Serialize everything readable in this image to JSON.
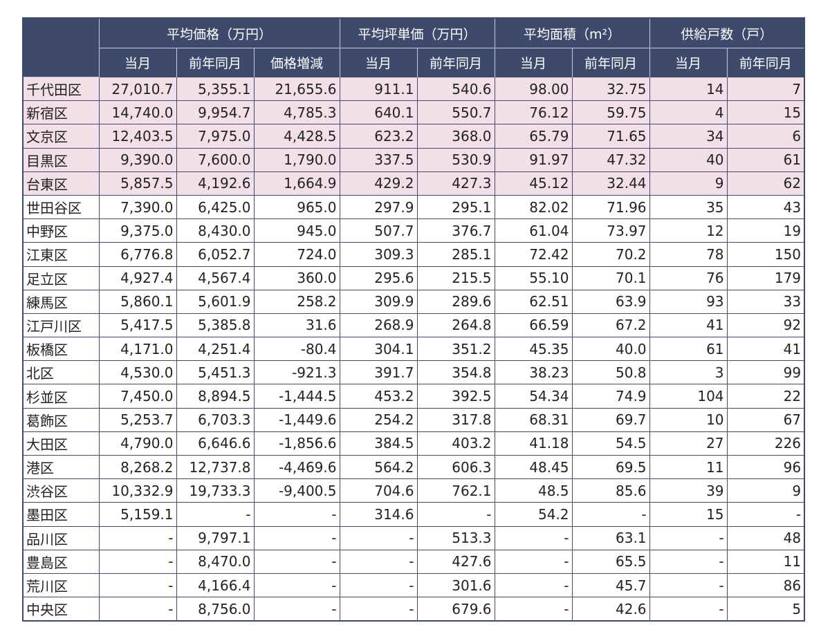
{
  "table": {
    "groups": [
      {
        "label": "平均価格（万円）",
        "span": 3
      },
      {
        "label": "平均坪単価（万円）",
        "span": 2
      },
      {
        "label": "平均面積（m²）",
        "span": 2
      },
      {
        "label": "供給戸数（戸）",
        "span": 2
      }
    ],
    "subheaders": [
      "当月",
      "前年同月",
      "価格増減",
      "当月",
      "前年同月",
      "当月",
      "前年同月",
      "当月",
      "前年同月"
    ],
    "rows": [
      [
        "千代田区",
        "27,010.7",
        "5,355.1",
        "21,655.6",
        "911.1",
        "540.6",
        "98.00",
        "32.75",
        "14",
        "7"
      ],
      [
        "新宿区",
        "14,740.0",
        "9,954.7",
        "4,785.3",
        "640.1",
        "550.7",
        "76.12",
        "59.75",
        "4",
        "15"
      ],
      [
        "文京区",
        "12,403.5",
        "7,975.0",
        "4,428.5",
        "623.2",
        "368.0",
        "65.79",
        "71.65",
        "34",
        "6"
      ],
      [
        "目黒区",
        "9,390.0",
        "7,600.0",
        "1,790.0",
        "337.5",
        "530.9",
        "91.97",
        "47.32",
        "40",
        "61"
      ],
      [
        "台東区",
        "5,857.5",
        "4,192.6",
        "1,664.9",
        "429.2",
        "427.3",
        "45.12",
        "32.44",
        "9",
        "62"
      ],
      [
        "世田谷区",
        "7,390.0",
        "6,425.0",
        "965.0",
        "297.9",
        "295.1",
        "82.02",
        "71.96",
        "35",
        "43"
      ],
      [
        "中野区",
        "9,375.0",
        "8,430.0",
        "945.0",
        "507.7",
        "376.7",
        "61.04",
        "73.97",
        "12",
        "19"
      ],
      [
        "江東区",
        "6,776.8",
        "6,052.7",
        "724.0",
        "309.3",
        "285.1",
        "72.42",
        "70.2",
        "78",
        "150"
      ],
      [
        "足立区",
        "4,927.4",
        "4,567.4",
        "360.0",
        "295.6",
        "215.5",
        "55.10",
        "70.1",
        "76",
        "179"
      ],
      [
        "練馬区",
        "5,860.1",
        "5,601.9",
        "258.2",
        "309.9",
        "289.6",
        "62.51",
        "63.9",
        "93",
        "33"
      ],
      [
        "江戸川区",
        "5,417.5",
        "5,385.8",
        "31.6",
        "268.9",
        "264.8",
        "66.59",
        "67.2",
        "41",
        "92"
      ],
      [
        "板橋区",
        "4,171.0",
        "4,251.4",
        "-80.4",
        "304.1",
        "351.2",
        "45.35",
        "40.0",
        "61",
        "41"
      ],
      [
        "北区",
        "4,530.0",
        "5,451.3",
        "-921.3",
        "391.7",
        "354.8",
        "38.23",
        "50.8",
        "3",
        "99"
      ],
      [
        "杉並区",
        "7,450.0",
        "8,894.5",
        "-1,444.5",
        "453.2",
        "392.5",
        "54.34",
        "74.9",
        "104",
        "22"
      ],
      [
        "葛飾区",
        "5,253.7",
        "6,703.3",
        "-1,449.6",
        "254.2",
        "317.8",
        "68.31",
        "69.7",
        "10",
        "67"
      ],
      [
        "大田区",
        "4,790.0",
        "6,646.6",
        "-1,856.6",
        "384.5",
        "403.2",
        "41.18",
        "54.5",
        "27",
        "226"
      ],
      [
        "港区",
        "8,268.2",
        "12,737.8",
        "-4,469.6",
        "564.2",
        "606.3",
        "48.45",
        "69.5",
        "11",
        "96"
      ],
      [
        "渋谷区",
        "10,332.9",
        "19,733.3",
        "-9,400.5",
        "704.6",
        "762.1",
        "48.5",
        "85.6",
        "39",
        "9"
      ],
      [
        "墨田区",
        "5,159.1",
        "-",
        "-",
        "314.6",
        "-",
        "54.2",
        "-",
        "15",
        "-"
      ],
      [
        "品川区",
        "-",
        "9,797.1",
        "-",
        "-",
        "513.3",
        "-",
        "63.1",
        "-",
        "48"
      ],
      [
        "豊島区",
        "-",
        "8,470.0",
        "-",
        "-",
        "427.6",
        "-",
        "65.5",
        "-",
        "11"
      ],
      [
        "荒川区",
        "-",
        "4,166.4",
        "-",
        "-",
        "301.6",
        "-",
        "45.7",
        "-",
        "86"
      ],
      [
        "中央区",
        "-",
        "8,756.0",
        "-",
        "-",
        "679.6",
        "-",
        "42.6",
        "-",
        "5"
      ]
    ]
  }
}
